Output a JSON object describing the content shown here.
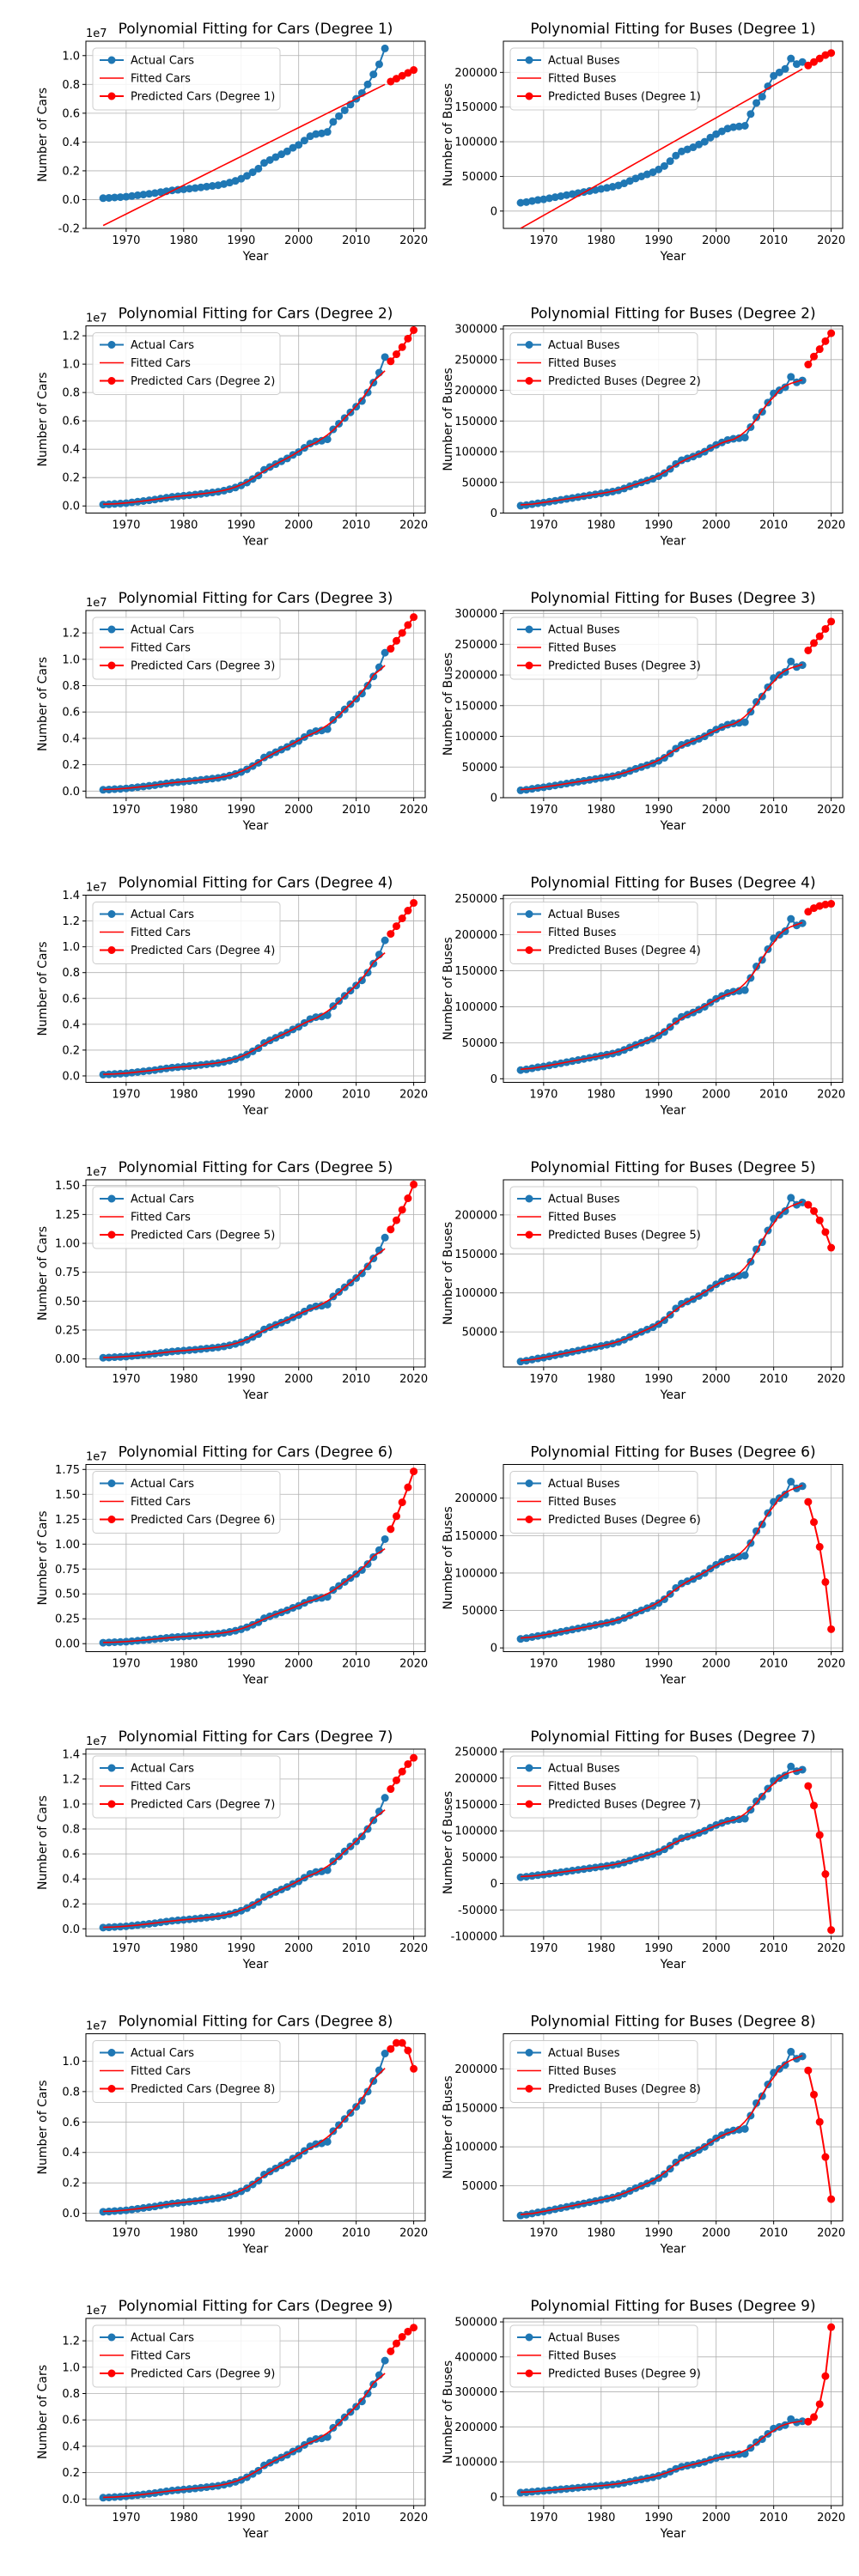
{
  "labels": {
    "actual_cars": "Actual Cars",
    "fitted_cars": "Fitted Cars",
    "predicted_cars_prefix": "Predicted Cars",
    "actual_buses": "Actual Buses",
    "fitted_buses": "Fitted Buses",
    "predicted_buses_prefix": "Predicted Buses",
    "xlabel": "Year",
    "ylabel_cars": "Number of Cars",
    "ylabel_buses": "Number of Buses",
    "title_cars_prefix": "Polynomial Fitting for Cars",
    "title_buses_prefix": "Polynomial Fitting for Buses",
    "degree_word": "Degree",
    "cars_exponent": "1e7"
  },
  "colors": {
    "actual": "#1f77b4",
    "fitted": "#ff0000",
    "predicted": "#ff0000",
    "grid": "#b0b0b0"
  },
  "chart_data": {
    "type": "line",
    "actual_years": [
      1966,
      1967,
      1968,
      1969,
      1970,
      1971,
      1972,
      1973,
      1974,
      1975,
      1976,
      1977,
      1978,
      1979,
      1980,
      1981,
      1982,
      1983,
      1984,
      1985,
      1986,
      1987,
      1988,
      1989,
      1990,
      1991,
      1992,
      1993,
      1994,
      1995,
      1996,
      1997,
      1998,
      1999,
      2000,
      2001,
      2002,
      2003,
      2004,
      2005,
      2006,
      2007,
      2008,
      2009,
      2010,
      2011,
      2012,
      2013,
      2014,
      2015
    ],
    "actual_cars": [
      0.01,
      0.012,
      0.015,
      0.017,
      0.02,
      0.025,
      0.03,
      0.035,
      0.04,
      0.045,
      0.052,
      0.058,
      0.064,
      0.068,
      0.072,
      0.076,
      0.08,
      0.085,
      0.09,
      0.095,
      0.1,
      0.108,
      0.118,
      0.13,
      0.145,
      0.165,
      0.19,
      0.215,
      0.255,
      0.275,
      0.295,
      0.315,
      0.335,
      0.36,
      0.38,
      0.41,
      0.44,
      0.455,
      0.46,
      0.47,
      0.54,
      0.58,
      0.62,
      0.66,
      0.7,
      0.74,
      0.8,
      0.87,
      0.94,
      1.05
    ],
    "actual_buses": [
      12000,
      13000,
      14500,
      16000,
      17000,
      18500,
      20000,
      21500,
      23000,
      24500,
      26000,
      27500,
      29000,
      30500,
      32000,
      33500,
      35000,
      37000,
      40000,
      43500,
      47000,
      50000,
      53000,
      56000,
      60000,
      65000,
      72000,
      80000,
      86000,
      89000,
      92000,
      96000,
      100000,
      106000,
      111000,
      115000,
      119000,
      121000,
      122000,
      123000,
      140000,
      156000,
      165000,
      180000,
      195000,
      200000,
      205000,
      212000,
      225000,
      235000
    ],
    "prediction_years": [
      2016,
      2017,
      2018,
      2019,
      2020
    ],
    "subplots": [
      {
        "degree": 1,
        "cars": {
          "ylim": [
            -0.2,
            1.1
          ],
          "yticks": [
            -0.2,
            0.0,
            0.2,
            0.4,
            0.6,
            0.8,
            1.0
          ],
          "fit_end": 0.8,
          "predicted": [
            0.82,
            0.84,
            0.86,
            0.88,
            0.9
          ]
        },
        "buses": {
          "ylim": [
            -25000,
            245000
          ],
          "yticks": [
            0,
            50000,
            100000,
            150000,
            200000
          ],
          "fit_end": 205000,
          "actual_tail": [
            220000,
            212000,
            215000
          ],
          "predicted": [
            210000,
            215000,
            220000,
            225000,
            228000
          ]
        }
      },
      {
        "degree": 2,
        "cars": {
          "ylim": [
            -0.05,
            1.27
          ],
          "yticks": [
            0.0,
            0.2,
            0.4,
            0.6,
            0.8,
            1.0,
            1.2
          ],
          "predicted": [
            1.02,
            1.07,
            1.12,
            1.18,
            1.24
          ]
        },
        "buses": {
          "ylim": [
            0,
            305000
          ],
          "yticks": [
            0,
            50000,
            100000,
            150000,
            200000,
            250000,
            300000
          ],
          "actual_tail": [
            222000,
            213000,
            216000
          ],
          "predicted": [
            242000,
            255000,
            267000,
            280000,
            293000
          ]
        }
      },
      {
        "degree": 3,
        "cars": {
          "ylim": [
            -0.05,
            1.37
          ],
          "yticks": [
            0.0,
            0.2,
            0.4,
            0.6,
            0.8,
            1.0,
            1.2
          ],
          "predicted": [
            1.08,
            1.14,
            1.2,
            1.26,
            1.32
          ]
        },
        "buses": {
          "ylim": [
            0,
            305000
          ],
          "yticks": [
            0,
            50000,
            100000,
            150000,
            200000,
            250000,
            300000
          ],
          "actual_tail": [
            222000,
            213000,
            216000
          ],
          "predicted": [
            240000,
            252000,
            263000,
            275000,
            287000
          ]
        }
      },
      {
        "degree": 4,
        "cars": {
          "ylim": [
            -0.05,
            1.4
          ],
          "yticks": [
            0.0,
            0.2,
            0.4,
            0.6,
            0.8,
            1.0,
            1.2,
            1.4
          ],
          "predicted": [
            1.1,
            1.16,
            1.22,
            1.28,
            1.34
          ]
        },
        "buses": {
          "ylim": [
            -5000,
            255000
          ],
          "yticks": [
            0,
            50000,
            100000,
            150000,
            200000,
            250000
          ],
          "actual_tail": [
            222000,
            213000,
            216000
          ],
          "predicted": [
            232000,
            237000,
            240000,
            242000,
            243000
          ]
        }
      },
      {
        "degree": 5,
        "cars": {
          "ylim": [
            -0.07,
            1.55
          ],
          "yticks": [
            0.0,
            0.25,
            0.5,
            0.75,
            1.0,
            1.25,
            1.5
          ],
          "predicted": [
            1.12,
            1.2,
            1.29,
            1.39,
            1.51
          ]
        },
        "buses": {
          "ylim": [
            5000,
            245000
          ],
          "yticks": [
            50000,
            100000,
            150000,
            200000
          ],
          "actual_tail": [
            222000,
            213000,
            216000
          ],
          "predicted": [
            213000,
            205000,
            193000,
            178000,
            158000
          ]
        }
      },
      {
        "degree": 6,
        "cars": {
          "ylim": [
            -0.08,
            1.8
          ],
          "yticks": [
            0.0,
            0.25,
            0.5,
            0.75,
            1.0,
            1.25,
            1.5,
            1.75
          ],
          "predicted": [
            1.15,
            1.28,
            1.42,
            1.57,
            1.73
          ]
        },
        "buses": {
          "ylim": [
            -5000,
            245000
          ],
          "yticks": [
            0,
            50000,
            100000,
            150000,
            200000
          ],
          "actual_tail": [
            222000,
            213000,
            216000
          ],
          "predicted": [
            195000,
            168000,
            135000,
            88000,
            25000
          ]
        }
      },
      {
        "degree": 7,
        "cars": {
          "ylim": [
            -0.06,
            1.44
          ],
          "yticks": [
            0.0,
            0.2,
            0.4,
            0.6,
            0.8,
            1.0,
            1.2,
            1.4
          ],
          "predicted": [
            1.12,
            1.19,
            1.26,
            1.32,
            1.37
          ]
        },
        "buses": {
          "ylim": [
            -100000,
            255000
          ],
          "yticks": [
            -100000,
            -50000,
            0,
            50000,
            100000,
            150000,
            200000,
            250000
          ],
          "actual_tail": [
            222000,
            213000,
            216000
          ],
          "predicted": [
            185000,
            148000,
            92000,
            18000,
            -88000
          ]
        }
      },
      {
        "degree": 8,
        "cars": {
          "ylim": [
            -0.05,
            1.18
          ],
          "yticks": [
            0.0,
            0.2,
            0.4,
            0.6,
            0.8,
            1.0
          ],
          "predicted": [
            1.08,
            1.12,
            1.12,
            1.07,
            0.95
          ]
        },
        "buses": {
          "ylim": [
            5000,
            245000
          ],
          "yticks": [
            50000,
            100000,
            150000,
            200000
          ],
          "actual_tail": [
            222000,
            213000,
            216000
          ],
          "predicted": [
            198000,
            167000,
            132000,
            87000,
            33000
          ]
        }
      },
      {
        "degree": 9,
        "cars": {
          "ylim": [
            -0.05,
            1.37
          ],
          "yticks": [
            0.0,
            0.2,
            0.4,
            0.6,
            0.8,
            1.0,
            1.2
          ],
          "predicted": [
            1.12,
            1.18,
            1.23,
            1.27,
            1.3
          ]
        },
        "buses": {
          "ylim": [
            -25000,
            510000
          ],
          "yticks": [
            0,
            100000,
            200000,
            300000,
            400000,
            500000
          ],
          "actual_tail": [
            222000,
            213000,
            216000
          ],
          "predicted": [
            215000,
            228000,
            265000,
            345000,
            485000
          ]
        }
      }
    ],
    "xlim": [
      1963,
      2022
    ],
    "xticks": [
      1970,
      1980,
      1990,
      2000,
      2010,
      2020
    ],
    "grid": true,
    "legend_position": "upper-left"
  }
}
